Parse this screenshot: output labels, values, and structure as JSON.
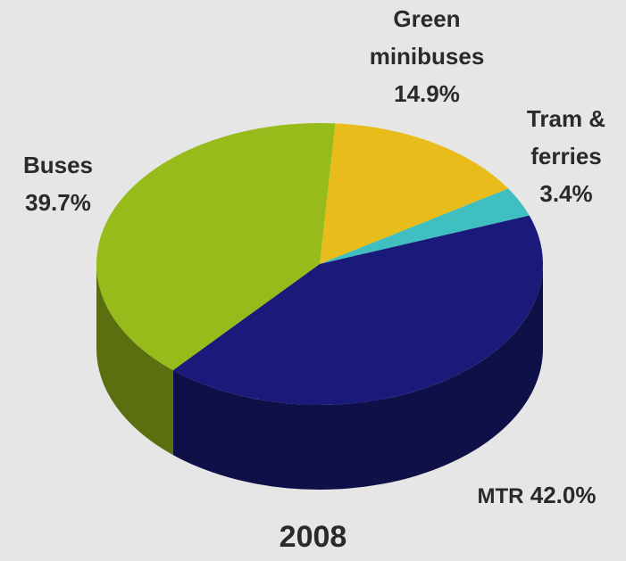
{
  "chart_data": {
    "type": "pie3d",
    "title": "2008",
    "categories": [
      "Green minibuses",
      "Tram & ferries",
      "MTR",
      "Buses"
    ],
    "values": [
      14.9,
      3.4,
      42.0,
      39.7
    ],
    "value_labels": [
      "14.9%",
      "3.4%",
      "42.0%",
      "39.7%"
    ],
    "colors": [
      "#e8bc1a",
      "#40bfc0",
      "#1a1a7a",
      "#96bb1a"
    ]
  }
}
